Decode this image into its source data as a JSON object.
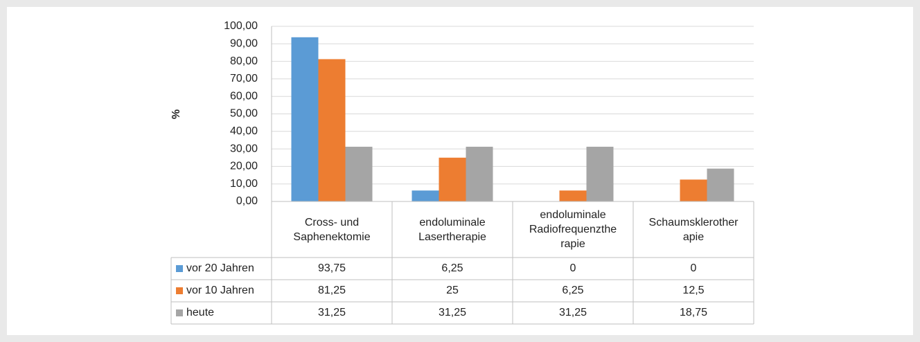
{
  "chart_data": {
    "type": "bar",
    "y_label": "%",
    "categories": [
      "Cross- und Saphenektomie",
      "endoluminale Lasertherapie",
      "endoluminale Radiofrequenztherapie",
      "Schaumsklerotherapie"
    ],
    "series": [
      {
        "name": "vor 20 Jahren",
        "color": "#5b9bd5",
        "values": [
          93.75,
          6.25,
          0,
          0
        ],
        "value_labels": [
          "93,75",
          "6,25",
          "0",
          "0"
        ]
      },
      {
        "name": "vor 10 Jahren",
        "color": "#ed7d31",
        "values": [
          81.25,
          25,
          6.25,
          12.5
        ],
        "value_labels": [
          "81,25",
          "25",
          "6,25",
          "12,5"
        ]
      },
      {
        "name": "heute",
        "color": "#a5a5a5",
        "values": [
          31.25,
          31.25,
          31.25,
          18.75
        ],
        "value_labels": [
          "31,25",
          "31,25",
          "31,25",
          "18,75"
        ]
      }
    ],
    "ylim": [
      0,
      100
    ],
    "yticks": [
      {
        "value": 0,
        "label": "0,00"
      },
      {
        "value": 10,
        "label": "10,00"
      },
      {
        "value": 20,
        "label": "20,00"
      },
      {
        "value": 30,
        "label": "30,00"
      },
      {
        "value": 40,
        "label": "40,00"
      },
      {
        "value": 50,
        "label": "50,00"
      },
      {
        "value": 60,
        "label": "60,00"
      },
      {
        "value": 70,
        "label": "70,00"
      },
      {
        "value": 80,
        "label": "80,00"
      },
      {
        "value": 90,
        "label": "90,00"
      },
      {
        "value": 100,
        "label": "100,00"
      }
    ],
    "grid": true
  }
}
